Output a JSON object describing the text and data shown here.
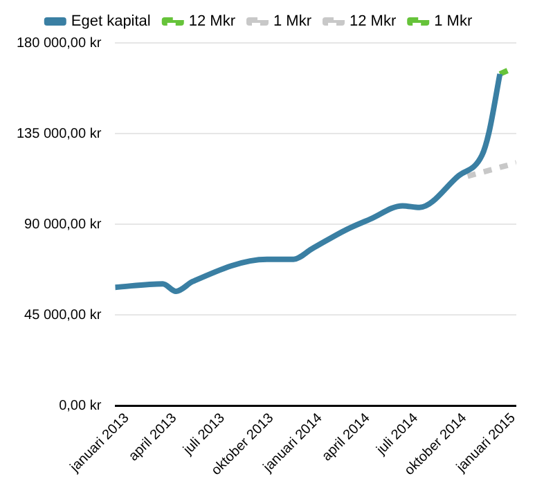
{
  "chart_data": {
    "type": "line",
    "xlim": [
      "2012-12-10",
      "2015-01-07"
    ],
    "xticks": [
      {
        "value": "2013-01-01",
        "label": "januari 2013"
      },
      {
        "value": "2013-04-01",
        "label": "april 2013"
      },
      {
        "value": "2013-07-01",
        "label": "juli 2013"
      },
      {
        "value": "2013-10-01",
        "label": "oktober 2013"
      },
      {
        "value": "2014-01-01",
        "label": "januari 2014"
      },
      {
        "value": "2014-04-01",
        "label": "april 2014"
      },
      {
        "value": "2014-07-01",
        "label": "juli 2014"
      },
      {
        "value": "2014-10-01",
        "label": "oktober 2014"
      },
      {
        "value": "2015-01-01",
        "label": "januari 2015"
      }
    ],
    "ylim": [
      0,
      180000
    ],
    "yticks": [
      {
        "value": 0,
        "label": "0,00 kr"
      },
      {
        "value": 45000,
        "label": "45 000,00 kr"
      },
      {
        "value": 90000,
        "label": "90 000,00 kr"
      },
      {
        "value": 135000,
        "label": "135 000,00 kr"
      },
      {
        "value": 180000,
        "label": "180 000,00 kr"
      }
    ],
    "grid": "y",
    "legend": "top",
    "marker": "none",
    "series": [
      {
        "name": "Eget kapital",
        "color": "#3a7fa3",
        "line_style": "solid",
        "x": [
          "2012-12-10",
          "2013-03-10",
          "2013-04-04",
          "2013-05-06",
          "2013-09-23",
          "2013-11-12",
          "2013-12-17",
          "2014-02-20",
          "2014-04-06",
          "2014-06-06",
          "2014-07-08",
          "2014-09-19",
          "2014-11-03",
          "2014-11-16",
          "2014-12-07"
        ],
        "values": [
          58800,
          60500,
          56800,
          61700,
          72700,
          72700,
          77900,
          87400,
          92600,
          99200,
          98400,
          113900,
          124200,
          135200,
          164600
        ]
      },
      {
        "name": "12 Mkr",
        "color": "#66c33a",
        "line_style": "dashed",
        "x": [
          "2014-12-07",
          "2014-12-26"
        ],
        "values": [
          164600,
          166800
        ]
      },
      {
        "name": "1 Mkr",
        "color": "#c8c8c8",
        "line_style": "dashed",
        "x": [
          "2014-10-07",
          "2015-01-07"
        ],
        "values": [
          113900,
          120500
        ]
      },
      {
        "name": "12 Mkr",
        "color": "#c8c8c8",
        "line_style": "dashed"
      },
      {
        "name": "1 Mkr",
        "color": "#66c33a",
        "line_style": "dashed"
      }
    ]
  }
}
